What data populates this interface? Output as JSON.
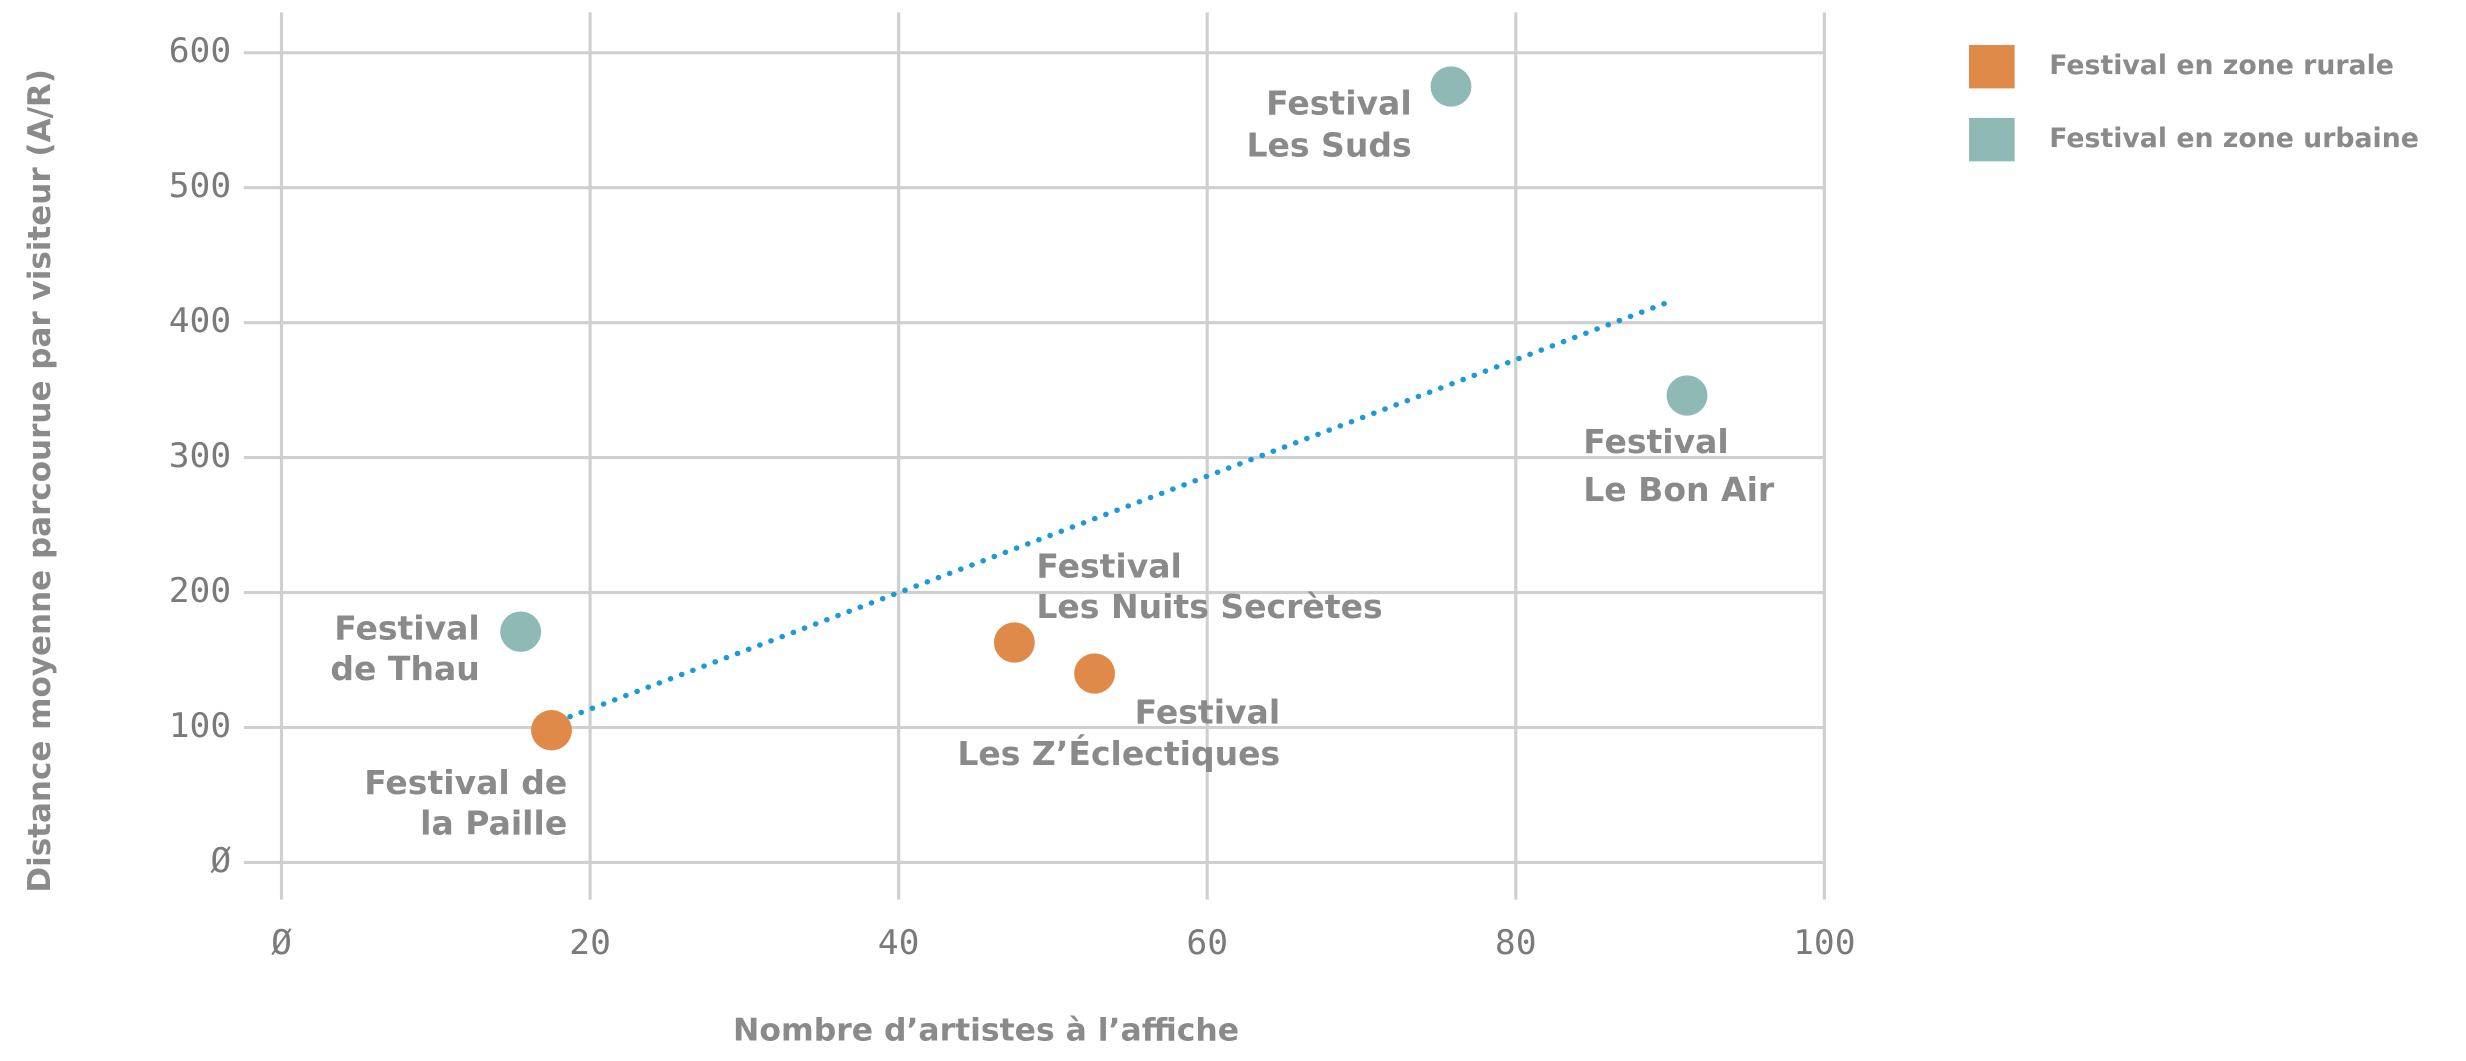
{
  "chart_data": {
    "type": "scatter",
    "xlabel": "Nombre d’artistes à l’affiche",
    "ylabel": "Distance moyenne parcourue par visiteur (A/R)",
    "xlim": [
      0,
      100
    ],
    "xticks": [
      {
        "value": 0,
        "label": "Ø"
      },
      20,
      40,
      60,
      80,
      100
    ],
    "ylim": [
      0,
      600
    ],
    "yticks": [
      {
        "value": 0,
        "label": "Ø"
      },
      100,
      200,
      300,
      400,
      500,
      600
    ],
    "grid": true,
    "legend": "top-right",
    "series": [
      {
        "name": "Festival en zone rurale",
        "color": "#e08a4a",
        "x": [
          17.5,
          47.5,
          52.7
        ],
        "values": [
          98,
          163,
          140
        ],
        "labels": [
          [
            "Festival de",
            "la Paille"
          ],
          [
            "Festival",
            "Les Nuits Secrètes"
          ],
          [
            "Festival",
            "Les Z’Éclectiques"
          ]
        ]
      },
      {
        "name": "Festival en zone urbaine",
        "color": "#8fb9b5",
        "x": [
          75.8,
          91.1,
          15.5
        ],
        "values": [
          575,
          346,
          171
        ],
        "labels": [
          [
            "Festival",
            "Les Suds"
          ],
          [
            "Festival",
            "Le Bon Air"
          ],
          [
            "Festival",
            "de Thau"
          ]
        ]
      }
    ],
    "trendline": {
      "color": "#1a9ad6",
      "x": [
        18.7,
        90.3
      ],
      "values": [
        108,
        417
      ]
    }
  }
}
